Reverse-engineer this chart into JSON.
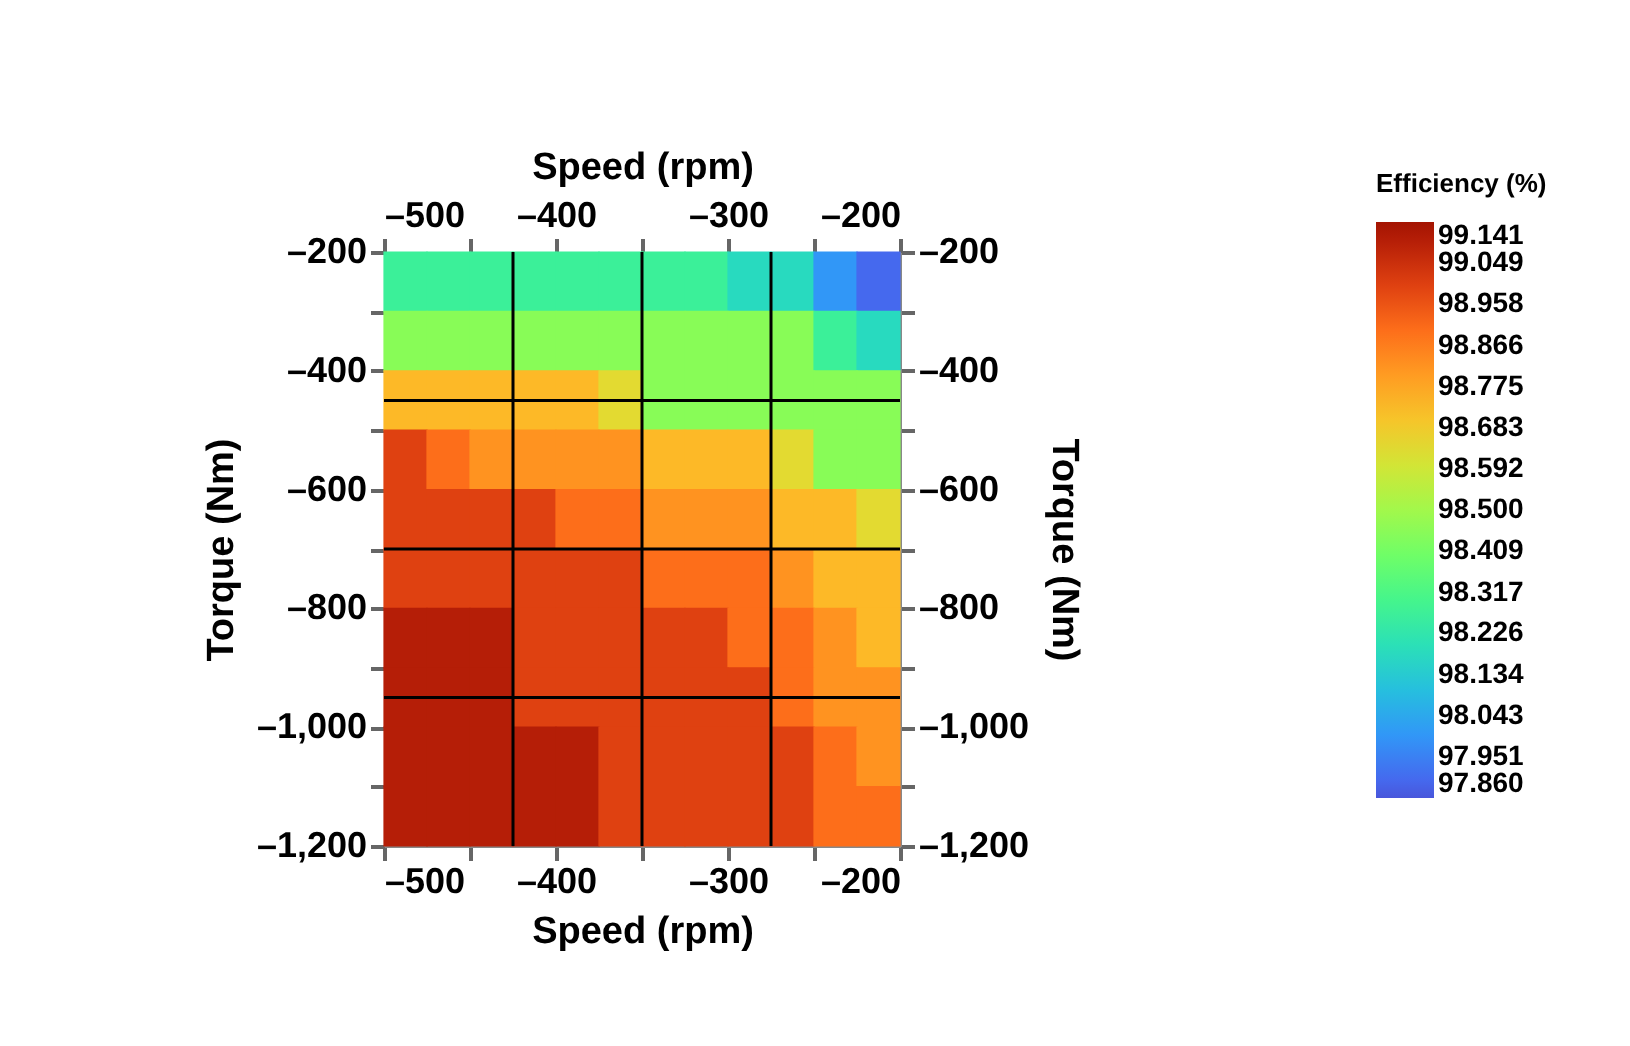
{
  "chart_data": {
    "type": "scatter",
    "marker": "square",
    "xlabel": "Speed (rpm)",
    "x2label": "Speed (rpm)",
    "ylabel": "Torque (Nm)",
    "y2label": "Torque (Nm)",
    "clabel": "Efficiency (%)",
    "x": [
      -487.5,
      -462.5,
      -437.5,
      -412.5,
      -387.5,
      -362.5,
      -337.5,
      -312.5,
      -287.5,
      -262.5,
      -237.5,
      -212.5,
      -487.5,
      -462.5,
      -437.5,
      -412.5,
      -387.5,
      -362.5,
      -337.5,
      -312.5,
      -287.5,
      -262.5,
      -237.5,
      -212.5,
      -487.5,
      -462.5,
      -437.5,
      -412.5,
      -387.5,
      -362.5,
      -337.5,
      -312.5,
      -287.5,
      -262.5,
      -237.5,
      -212.5,
      -487.5,
      -462.5,
      -437.5,
      -412.5,
      -387.5,
      -362.5,
      -337.5,
      -312.5,
      -287.5,
      -262.5,
      -237.5,
      -212.5,
      -487.5,
      -462.5,
      -437.5,
      -412.5,
      -387.5,
      -362.5,
      -337.5,
      -312.5,
      -287.5,
      -262.5,
      -237.5,
      -212.5,
      -487.5,
      -462.5,
      -437.5,
      -412.5,
      -387.5,
      -362.5,
      -337.5,
      -312.5,
      -287.5,
      -262.5,
      -237.5,
      -212.5,
      -487.5,
      -462.5,
      -437.5,
      -412.5,
      -387.5,
      -362.5,
      -337.5,
      -312.5,
      -287.5,
      -262.5,
      -237.5,
      -212.5,
      -487.5,
      -462.5,
      -437.5,
      -412.5,
      -387.5,
      -362.5,
      -337.5,
      -312.5,
      -287.5,
      -262.5,
      -237.5,
      -212.5,
      -487.5,
      -462.5,
      -437.5,
      -412.5,
      -387.5,
      -362.5,
      -337.5,
      -312.5,
      -287.5,
      -262.5,
      -237.5,
      -212.5,
      -487.5,
      -462.5,
      -437.5,
      -412.5,
      -387.5,
      -362.5,
      -337.5,
      -312.5,
      -287.5,
      -262.5,
      -237.5,
      -212.5
    ],
    "values": [
      -250,
      -250,
      -250,
      -250,
      -250,
      -250,
      -250,
      -250,
      -250,
      -250,
      -250,
      -250,
      -350,
      -350,
      -350,
      -350,
      -350,
      -350,
      -350,
      -350,
      -350,
      -350,
      -350,
      -350,
      -450,
      -450,
      -450,
      -450,
      -450,
      -450,
      -450,
      -450,
      -450,
      -450,
      -450,
      -450,
      -550,
      -550,
      -550,
      -550,
      -550,
      -550,
      -550,
      -550,
      -550,
      -550,
      -550,
      -550,
      -650,
      -650,
      -650,
      -650,
      -650,
      -650,
      -650,
      -650,
      -650,
      -650,
      -650,
      -650,
      -750,
      -750,
      -750,
      -750,
      -750,
      -750,
      -750,
      -750,
      -750,
      -750,
      -750,
      -750,
      -850,
      -850,
      -850,
      -850,
      -850,
      -850,
      -850,
      -850,
      -850,
      -850,
      -850,
      -850,
      -950,
      -950,
      -950,
      -950,
      -950,
      -950,
      -950,
      -950,
      -950,
      -950,
      -950,
      -950,
      -1050,
      -1050,
      -1050,
      -1050,
      -1050,
      -1050,
      -1050,
      -1050,
      -1050,
      -1050,
      -1050,
      -1050,
      -1150,
      -1150,
      -1150,
      -1150,
      -1150,
      -1150,
      -1150,
      -1150,
      -1150,
      -1150,
      -1150,
      -1150
    ],
    "cvalues": [
      98.27,
      98.27,
      98.27,
      98.27,
      98.27,
      98.27,
      98.27,
      98.27,
      98.18,
      98.18,
      98.0,
      97.9,
      98.45,
      98.45,
      98.45,
      98.45,
      98.45,
      98.45,
      98.45,
      98.45,
      98.45,
      98.45,
      98.27,
      98.18,
      98.73,
      98.73,
      98.73,
      98.73,
      98.73,
      98.64,
      98.45,
      98.45,
      98.45,
      98.45,
      98.45,
      98.45,
      99.0,
      98.9,
      98.82,
      98.82,
      98.82,
      98.82,
      98.73,
      98.73,
      98.73,
      98.64,
      98.45,
      98.45,
      99.0,
      99.0,
      99.0,
      99.0,
      98.9,
      98.9,
      98.82,
      98.82,
      98.82,
      98.73,
      98.73,
      98.64,
      99.0,
      99.0,
      99.0,
      99.0,
      99.0,
      99.0,
      98.9,
      98.9,
      98.9,
      98.82,
      98.73,
      98.73,
      99.1,
      99.1,
      99.1,
      99.0,
      99.0,
      99.0,
      99.0,
      99.0,
      98.9,
      98.9,
      98.82,
      98.73,
      99.1,
      99.1,
      99.1,
      99.0,
      99.0,
      99.0,
      99.0,
      99.0,
      99.0,
      98.9,
      98.82,
      98.82,
      99.1,
      99.1,
      99.1,
      99.1,
      99.1,
      99.0,
      99.0,
      99.0,
      99.0,
      99.0,
      98.9,
      98.82,
      99.1,
      99.1,
      99.1,
      99.1,
      99.1,
      99.0,
      99.0,
      99.0,
      99.0,
      99.0,
      98.9,
      98.9
    ],
    "xlim": [
      -500,
      -200
    ],
    "x2lim": [
      -500,
      -200
    ],
    "ylim": [
      -1200,
      -200
    ],
    "y2lim": [
      -1200,
      -200
    ],
    "xticks": [
      {
        "value": -500,
        "label": "–500"
      },
      {
        "value": -450,
        "label": null
      },
      {
        "value": -400,
        "label": "–400"
      },
      {
        "value": -350,
        "label": null
      },
      {
        "value": -300,
        "label": "–300"
      },
      {
        "value": -250,
        "label": null
      },
      {
        "value": -200,
        "label": "–200"
      }
    ],
    "x2ticks": [
      {
        "value": -500,
        "label": "–500"
      },
      {
        "value": -450,
        "label": null
      },
      {
        "value": -400,
        "label": "–400"
      },
      {
        "value": -350,
        "label": null
      },
      {
        "value": -300,
        "label": "–300"
      },
      {
        "value": -250,
        "label": null
      },
      {
        "value": -200,
        "label": "–200"
      }
    ],
    "yticks": [
      {
        "value": -200,
        "label": "–200"
      },
      {
        "value": -300,
        "label": null
      },
      {
        "value": -400,
        "label": "–400"
      },
      {
        "value": -500,
        "label": null
      },
      {
        "value": -600,
        "label": "–600"
      },
      {
        "value": -700,
        "label": null
      },
      {
        "value": -800,
        "label": "–800"
      },
      {
        "value": -900,
        "label": null
      },
      {
        "value": -1000,
        "label": "–1,000"
      },
      {
        "value": -1100,
        "label": null
      },
      {
        "value": -1200,
        "label": "–1,200"
      }
    ],
    "y2ticks": [
      {
        "value": -200,
        "label": "–200"
      },
      {
        "value": -300,
        "label": null
      },
      {
        "value": -400,
        "label": "–400"
      },
      {
        "value": -500,
        "label": null
      },
      {
        "value": -600,
        "label": "–600"
      },
      {
        "value": -700,
        "label": null
      },
      {
        "value": -800,
        "label": "–800"
      },
      {
        "value": -900,
        "label": null
      },
      {
        "value": -1000,
        "label": "–1,000"
      },
      {
        "value": -1100,
        "label": null
      },
      {
        "value": -1200,
        "label": "–1,200"
      }
    ],
    "clim": [
      97.86,
      99.141
    ],
    "cticks": [
      {
        "value": 97.86,
        "label": "97.860"
      },
      {
        "value": 97.951,
        "label": "97.951"
      },
      {
        "value": 98.043,
        "label": "98.043"
      },
      {
        "value": 98.134,
        "label": "98.134"
      },
      {
        "value": 98.226,
        "label": "98.226"
      },
      {
        "value": 98.317,
        "label": "98.317"
      },
      {
        "value": 98.409,
        "label": "98.409"
      },
      {
        "value": 98.5,
        "label": "98.500"
      },
      {
        "value": 98.592,
        "label": "98.592"
      },
      {
        "value": 98.683,
        "label": "98.683"
      },
      {
        "value": 98.775,
        "label": "98.775"
      },
      {
        "value": 98.866,
        "label": "98.866"
      },
      {
        "value": 98.958,
        "label": "98.958"
      },
      {
        "value": 99.049,
        "label": "99.049"
      },
      {
        "value": 99.141,
        "label": "99.141"
      }
    ],
    "ref_lines": [
      {
        "axis": "x",
        "value": -425,
        "color": "#000000"
      },
      {
        "axis": "x",
        "value": -350,
        "color": "#000000"
      },
      {
        "axis": "x",
        "value": -275,
        "color": "#000000"
      },
      {
        "axis": "y",
        "value": -450,
        "color": "#000000"
      },
      {
        "axis": "y",
        "value": -700,
        "color": "#000000"
      },
      {
        "axis": "y",
        "value": -950,
        "color": "#000000"
      }
    ]
  }
}
